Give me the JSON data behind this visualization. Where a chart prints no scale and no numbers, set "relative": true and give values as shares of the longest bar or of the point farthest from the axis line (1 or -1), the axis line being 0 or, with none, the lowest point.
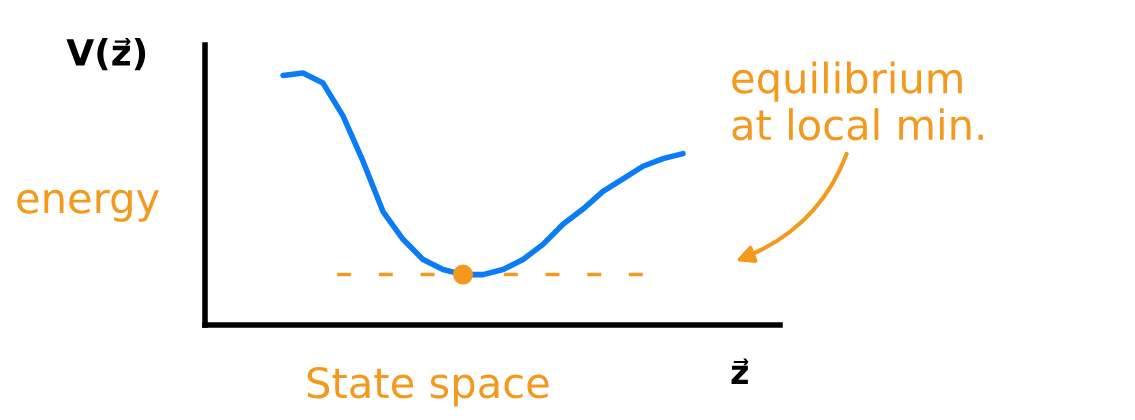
{
  "chart_data": {
    "type": "line",
    "relative": true,
    "xlabel": "z⃗",
    "ylabel": "V(z⃗)",
    "categories": [
      null,
      null,
      null,
      null,
      null,
      null,
      null,
      null,
      null,
      null,
      null,
      null,
      null,
      null,
      null,
      null,
      null,
      null,
      null,
      null,
      null
    ],
    "series": [
      {
        "color": "#0a7cf5",
        "values": [
          0.99,
          1.0,
          0.96,
          0.83,
          0.65,
          0.45,
          0.34,
          0.26,
          0.22,
          0.2,
          0.2,
          0.22,
          0.26,
          0.32,
          0.4,
          0.46,
          0.53,
          0.58,
          0.63,
          0.66,
          0.68
        ]
      }
    ],
    "ref_lines": [
      {
        "axis": "y",
        "value": 0.2,
        "color": "#f39a1e",
        "line_style": "dashed"
      }
    ],
    "annotations": [
      "energy",
      "State space",
      "equilibrium\nat local min."
    ],
    "line_style": "solid"
  }
}
